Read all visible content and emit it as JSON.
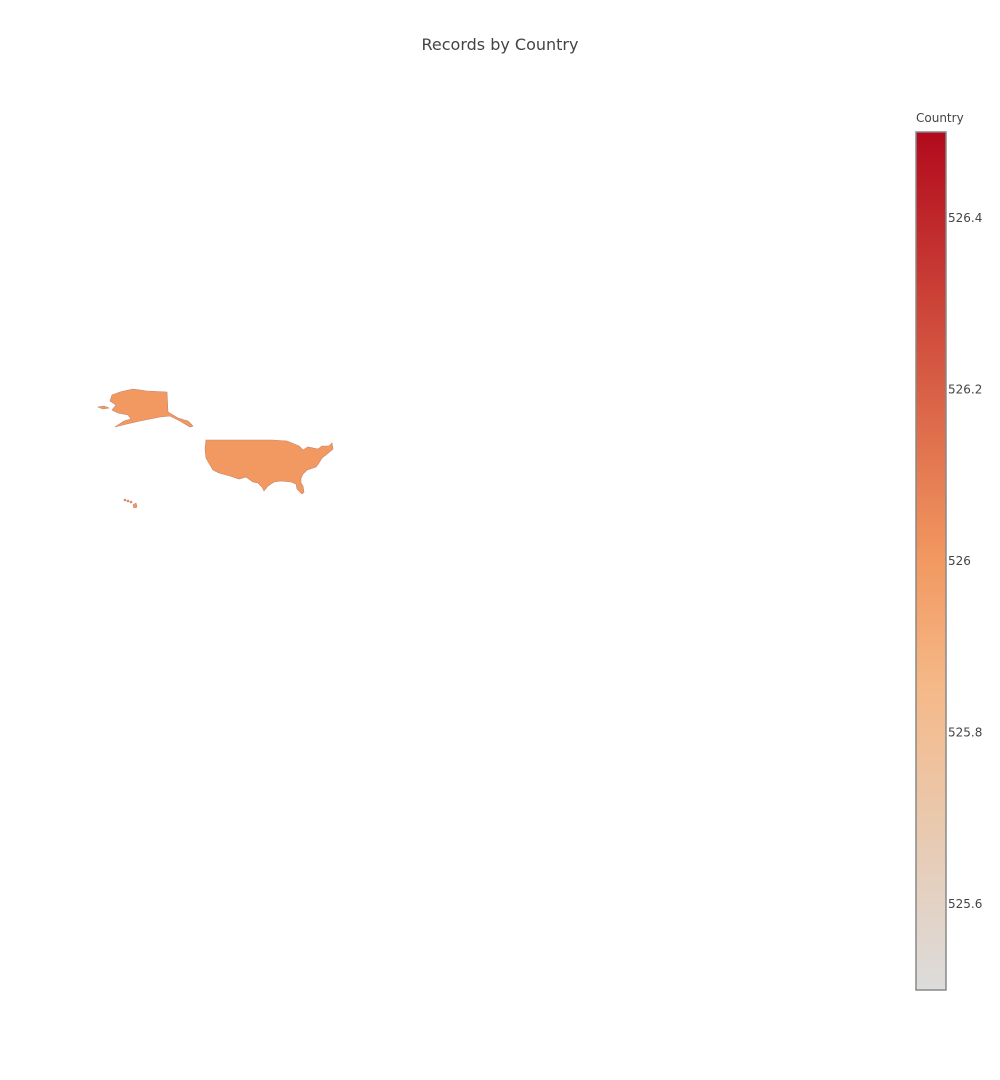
{
  "title": "Records by Country",
  "chart_data": {
    "type": "choropleth",
    "title": "Records by Country",
    "scope": "world",
    "projection": "equirectangular",
    "locations": [
      "USA"
    ],
    "location_names": [
      "United States"
    ],
    "values": [
      526
    ],
    "colorbar": {
      "title": "Country",
      "range": [
        525.5,
        526.5
      ],
      "tickvals": [
        525.6,
        525.8,
        526,
        526.2,
        526.4
      ],
      "ticktext": [
        "525.6",
        "525.8",
        "526",
        "526.2",
        "526.4"
      ],
      "colorscale": [
        [
          0.0,
          "#dcdcdc"
        ],
        [
          0.35,
          "#f5b989"
        ],
        [
          0.5,
          "#f29961"
        ],
        [
          1.0,
          "#b20a1c"
        ]
      ]
    },
    "colors": {
      "usa_fill": "#e8845a",
      "border": "#c8826a",
      "colorbar_outline": "#888888",
      "background": "#ffffff"
    }
  }
}
